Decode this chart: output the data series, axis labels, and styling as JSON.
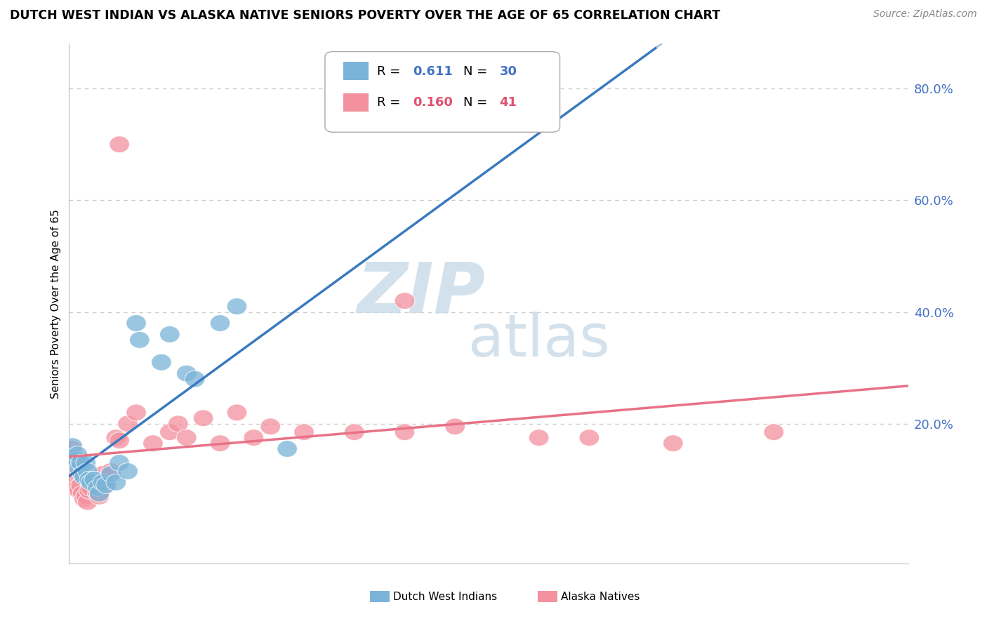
{
  "title": "DUTCH WEST INDIAN VS ALASKA NATIVE SENIORS POVERTY OVER THE AGE OF 65 CORRELATION CHART",
  "source": "Source: ZipAtlas.com",
  "ylabel": "Seniors Poverty Over the Age of 65",
  "xmin": 0.0,
  "xmax": 0.5,
  "ymin": -0.05,
  "ymax": 0.88,
  "blue_r": "0.611",
  "blue_n": "30",
  "pink_r": "0.160",
  "pink_n": "41",
  "blue_color": "#7ab4d8",
  "pink_color": "#f4919e",
  "blue_line_color": "#3a7abf",
  "pink_line_color": "#e87288",
  "blue_dash_color": "#a0c4df",
  "r_color_blue": "#4472c4",
  "n_color_blue": "#4472c4",
  "r_color_pink": "#e05070",
  "n_color_pink": "#e05070",
  "tick_label_color": "#4472c4",
  "grid_color": "#cccccc",
  "watermark_zip_color": "#c8dae8",
  "watermark_atlas_color": "#c8dae8",
  "blue_scatter": [
    [
      0.002,
      0.16
    ],
    [
      0.003,
      0.14
    ],
    [
      0.004,
      0.135
    ],
    [
      0.005,
      0.145
    ],
    [
      0.006,
      0.12
    ],
    [
      0.007,
      0.13
    ],
    [
      0.008,
      0.11
    ],
    [
      0.009,
      0.105
    ],
    [
      0.01,
      0.13
    ],
    [
      0.011,
      0.115
    ],
    [
      0.012,
      0.1
    ],
    [
      0.013,
      0.095
    ],
    [
      0.015,
      0.1
    ],
    [
      0.017,
      0.085
    ],
    [
      0.018,
      0.075
    ],
    [
      0.02,
      0.095
    ],
    [
      0.022,
      0.09
    ],
    [
      0.025,
      0.11
    ],
    [
      0.028,
      0.095
    ],
    [
      0.03,
      0.13
    ],
    [
      0.035,
      0.115
    ],
    [
      0.04,
      0.38
    ],
    [
      0.042,
      0.35
    ],
    [
      0.055,
      0.31
    ],
    [
      0.06,
      0.36
    ],
    [
      0.07,
      0.29
    ],
    [
      0.075,
      0.28
    ],
    [
      0.09,
      0.38
    ],
    [
      0.1,
      0.41
    ],
    [
      0.13,
      0.155
    ]
  ],
  "pink_scatter": [
    [
      0.002,
      0.155
    ],
    [
      0.003,
      0.12
    ],
    [
      0.004,
      0.1
    ],
    [
      0.005,
      0.085
    ],
    [
      0.006,
      0.08
    ],
    [
      0.007,
      0.09
    ],
    [
      0.008,
      0.075
    ],
    [
      0.009,
      0.065
    ],
    [
      0.01,
      0.07
    ],
    [
      0.011,
      0.06
    ],
    [
      0.012,
      0.08
    ],
    [
      0.013,
      0.085
    ],
    [
      0.015,
      0.095
    ],
    [
      0.017,
      0.075
    ],
    [
      0.018,
      0.07
    ],
    [
      0.02,
      0.11
    ],
    [
      0.022,
      0.09
    ],
    [
      0.025,
      0.115
    ],
    [
      0.028,
      0.175
    ],
    [
      0.03,
      0.17
    ],
    [
      0.035,
      0.2
    ],
    [
      0.04,
      0.22
    ],
    [
      0.05,
      0.165
    ],
    [
      0.06,
      0.185
    ],
    [
      0.065,
      0.2
    ],
    [
      0.07,
      0.175
    ],
    [
      0.08,
      0.21
    ],
    [
      0.09,
      0.165
    ],
    [
      0.1,
      0.22
    ],
    [
      0.11,
      0.175
    ],
    [
      0.12,
      0.195
    ],
    [
      0.14,
      0.185
    ],
    [
      0.17,
      0.185
    ],
    [
      0.2,
      0.185
    ],
    [
      0.23,
      0.195
    ],
    [
      0.28,
      0.175
    ],
    [
      0.31,
      0.175
    ],
    [
      0.36,
      0.165
    ],
    [
      0.42,
      0.185
    ],
    [
      0.03,
      0.7
    ],
    [
      0.2,
      0.42
    ]
  ],
  "blue_line_xstart": 0.0,
  "blue_line_xend": 0.35,
  "blue_dash_xstart": 0.35,
  "blue_dash_xend": 0.5,
  "pink_line_xstart": 0.0,
  "pink_line_xend": 0.5
}
